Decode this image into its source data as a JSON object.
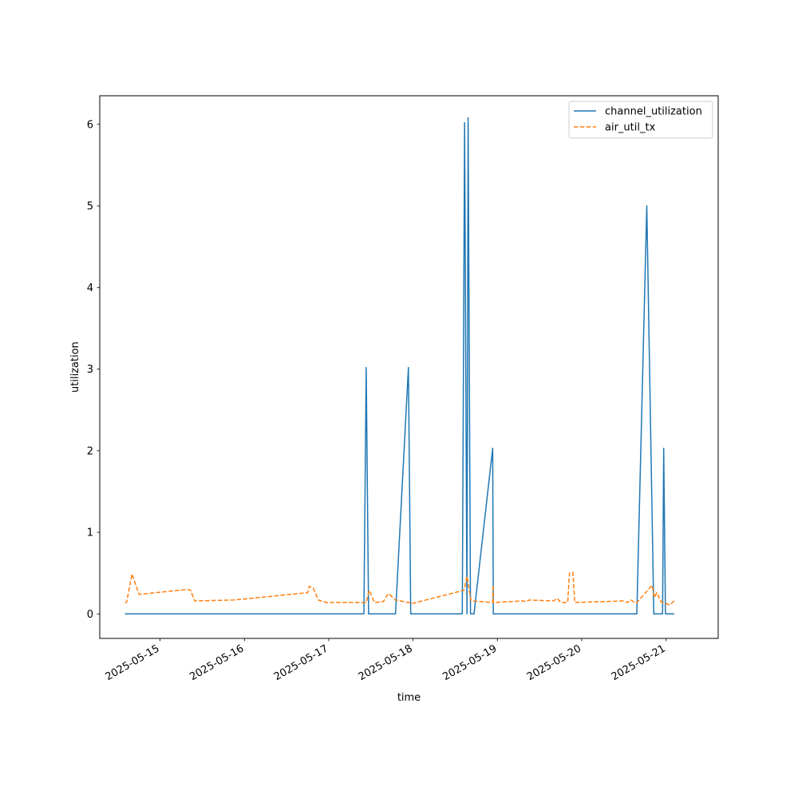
{
  "chart_data": {
    "type": "line",
    "title": "",
    "xlabel": "time",
    "ylabel": "utilization",
    "x_ticks": [
      "2025-05-15",
      "2025-05-16",
      "2025-05-17",
      "2025-05-18",
      "2025-05-19",
      "2025-05-20",
      "2025-05-21"
    ],
    "y_ticks": [
      0,
      1,
      2,
      3,
      4,
      5,
      6
    ],
    "xlim": [
      "2025-05-14T06:50",
      "2025-05-21T14:50"
    ],
    "ylim": [
      -0.3,
      6.35
    ],
    "grid": false,
    "legend_position": "upper right",
    "series": [
      {
        "name": "channel_utilization",
        "color": "#1f77b4",
        "style": "solid",
        "points": [
          [
            "2025-05-14T14:00",
            0.0
          ],
          [
            "2025-05-17T10:00",
            0.0
          ],
          [
            "2025-05-17T10:40",
            3.02
          ],
          [
            "2025-05-17T11:20",
            0.0
          ],
          [
            "2025-05-17T19:00",
            0.0
          ],
          [
            "2025-05-17T22:40",
            3.02
          ],
          [
            "2025-05-17T23:20",
            0.0
          ],
          [
            "2025-05-18T14:00",
            0.0
          ],
          [
            "2025-05-18T14:40",
            6.02
          ],
          [
            "2025-05-18T15:20",
            0.0
          ],
          [
            "2025-05-18T15:40",
            6.08
          ],
          [
            "2025-05-18T16:20",
            0.0
          ],
          [
            "2025-05-18T17:20",
            0.0
          ],
          [
            "2025-05-18T22:40",
            2.03
          ],
          [
            "2025-05-18T22:50",
            0.0
          ],
          [
            "2025-05-20T15:40",
            0.0
          ],
          [
            "2025-05-20T18:30",
            5.0
          ],
          [
            "2025-05-20T20:30",
            0.0
          ],
          [
            "2025-05-20T23:00",
            0.0
          ],
          [
            "2025-05-20T23:20",
            2.03
          ],
          [
            "2025-05-20T23:50",
            0.0
          ],
          [
            "2025-05-21T02:20",
            0.0
          ]
        ]
      },
      {
        "name": "air_util_tx",
        "color": "#ff7f0e",
        "style": "dashed",
        "points": [
          [
            "2025-05-14T14:00",
            0.13
          ],
          [
            "2025-05-14T14:30",
            0.15
          ],
          [
            "2025-05-14T16:00",
            0.49
          ],
          [
            "2025-05-14T18:00",
            0.24
          ],
          [
            "2025-05-15T08:00",
            0.3
          ],
          [
            "2025-05-15T08:40",
            0.29
          ],
          [
            "2025-05-15T09:50",
            0.16
          ],
          [
            "2025-05-15T21:00",
            0.17
          ],
          [
            "2025-05-16T18:00",
            0.26
          ],
          [
            "2025-05-16T18:30",
            0.34
          ],
          [
            "2025-05-16T19:40",
            0.31
          ],
          [
            "2025-05-16T21:00",
            0.17
          ],
          [
            "2025-05-16T23:20",
            0.14
          ],
          [
            "2025-05-17T10:40",
            0.14
          ],
          [
            "2025-05-17T11:30",
            0.29
          ],
          [
            "2025-05-17T13:00",
            0.14
          ],
          [
            "2025-05-17T15:30",
            0.15
          ],
          [
            "2025-05-17T17:00",
            0.25
          ],
          [
            "2025-05-17T19:00",
            0.17
          ],
          [
            "2025-05-18T00:00",
            0.13
          ],
          [
            "2025-05-18T14:30",
            0.29
          ],
          [
            "2025-05-18T15:20",
            0.46
          ],
          [
            "2025-05-18T16:30",
            0.16
          ],
          [
            "2025-05-18T22:40",
            0.14
          ],
          [
            "2025-05-18T22:45",
            0.35
          ],
          [
            "2025-05-18T22:50",
            0.14
          ],
          [
            "2025-05-19T07:30",
            0.16
          ],
          [
            "2025-05-19T08:00",
            0.15
          ],
          [
            "2025-05-19T09:00",
            0.17
          ],
          [
            "2025-05-19T16:00",
            0.16
          ],
          [
            "2025-05-19T17:00",
            0.19
          ],
          [
            "2025-05-19T18:00",
            0.14
          ],
          [
            "2025-05-19T20:00",
            0.14
          ],
          [
            "2025-05-19T20:30",
            0.5
          ],
          [
            "2025-05-19T21:30",
            0.51
          ],
          [
            "2025-05-19T22:00",
            0.14
          ],
          [
            "2025-05-20T12:00",
            0.16
          ],
          [
            "2025-05-20T13:00",
            0.14
          ],
          [
            "2025-05-20T14:00",
            0.17
          ],
          [
            "2025-05-20T15:30",
            0.13
          ],
          [
            "2025-05-20T20:00",
            0.35
          ],
          [
            "2025-05-20T20:40",
            0.2
          ],
          [
            "2025-05-20T21:20",
            0.26
          ],
          [
            "2025-05-20T22:30",
            0.15
          ],
          [
            "2025-05-21T01:00",
            0.11
          ],
          [
            "2025-05-21T02:20",
            0.16
          ]
        ]
      }
    ]
  }
}
